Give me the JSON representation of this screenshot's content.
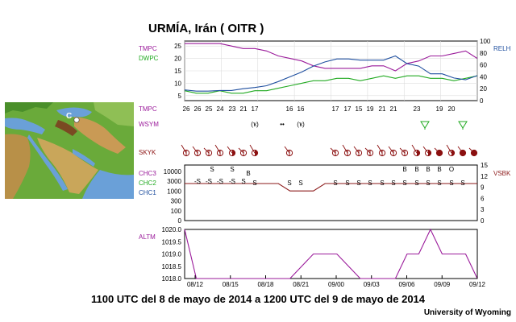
{
  "page": {
    "title": "URMÍA, Irán ( OITR )",
    "caption": "1100 UTC del 8 de mayo de 2014 a 1200 UTC del 9 de mayo de 2014",
    "credit": "University of Wyoming",
    "map_station_letter": "C"
  },
  "colors": {
    "tmpc": "#9a1a9a",
    "dwpc": "#22aa22",
    "relh": "#1f4f9f",
    "sky": "#8b1010",
    "ceiling": "#8b1a1a",
    "ceil_label": "#339999",
    "altm": "#9a1a9a",
    "weather": "#22aa22"
  },
  "chart_data": [
    {
      "type": "line",
      "panel": "temperature",
      "legend": [
        "TMPC",
        "DWPC",
        "RELH"
      ],
      "y_left_ticks": [
        "25",
        "20",
        "15",
        "10",
        "5"
      ],
      "y_right_ticks": [
        "100",
        "80",
        "60",
        "40",
        "20",
        "0"
      ],
      "ylim_left": [
        3,
        27
      ],
      "ylim_right": [
        0,
        100
      ],
      "grid": true,
      "x": [
        0,
        1,
        2,
        3,
        4,
        5,
        6,
        7,
        8,
        9,
        10,
        11,
        12,
        13,
        14,
        15,
        16,
        17,
        18,
        19,
        20,
        21,
        22,
        23,
        24,
        25
      ],
      "series": [
        {
          "name": "TMPC",
          "axis": "left",
          "values": [
            26,
            26,
            26,
            26,
            25,
            24,
            24,
            23,
            21,
            20,
            19,
            17,
            16,
            16,
            16,
            16,
            17,
            17,
            15,
            18,
            19,
            21,
            21,
            22,
            23,
            20
          ]
        },
        {
          "name": "DWPC",
          "axis": "left",
          "values": [
            7,
            6,
            6,
            7,
            6,
            6,
            7,
            7,
            8,
            9,
            10,
            11,
            11,
            12,
            12,
            11,
            12,
            13,
            12,
            13,
            13,
            12,
            12,
            11,
            12,
            13
          ]
        },
        {
          "name": "RELH",
          "axis": "right",
          "values": [
            18,
            16,
            16,
            17,
            17,
            20,
            22,
            25,
            32,
            40,
            48,
            58,
            65,
            70,
            70,
            68,
            68,
            68,
            75,
            62,
            58,
            45,
            45,
            38,
            35,
            42
          ]
        }
      ]
    },
    {
      "type": "table",
      "panel": "observations",
      "tmpc_label": "TMPC",
      "tmpc_values": [
        "26",
        "26",
        "25",
        "24",
        "23",
        "21",
        "17",
        "16",
        "16",
        "17",
        "17",
        "15",
        "19",
        "21",
        "21",
        "23",
        "19",
        "20"
      ],
      "wsym_label": "WSYM",
      "skyk_label": "SKYK"
    },
    {
      "type": "line",
      "panel": "ceiling",
      "legend": [
        "CHC3",
        "CHC2",
        "CHC1"
      ],
      "right_label": "VSBK",
      "y_left_ticks": [
        "10000",
        "3000",
        "1000",
        "300",
        "100",
        "0"
      ],
      "y_right_ticks": [
        "15",
        "12",
        "9",
        "6",
        "3",
        "0"
      ],
      "cloud_codes": [
        "-S",
        "-S",
        "-S",
        "-S",
        "S",
        "S",
        "S",
        "B",
        "B",
        "B",
        "B",
        "B",
        "O"
      ],
      "series": [
        {
          "name": "VSBK",
          "values": [
            10,
            10,
            10,
            10,
            10,
            10,
            10,
            10,
            10,
            8,
            8,
            8,
            10,
            10,
            10,
            10,
            10,
            10,
            10,
            10,
            10,
            10,
            10,
            10,
            10,
            10
          ]
        }
      ]
    },
    {
      "type": "line",
      "panel": "pressure",
      "legend": [
        "ALTM"
      ],
      "y_ticks": [
        "1020.0",
        "1019.5",
        "1019.0",
        "1018.5",
        "1018.0"
      ],
      "ylim": [
        1018.0,
        1020.0
      ],
      "x_ticks": [
        "08/12",
        "08/15",
        "08/18",
        "08/21",
        "09/00",
        "09/03",
        "09/06",
        "09/09",
        "09/12"
      ],
      "series": [
        {
          "name": "ALTM",
          "values": [
            1020,
            1018,
            1018,
            1018,
            1018,
            1018,
            1018,
            1018,
            1018,
            1018,
            1018.5,
            1019,
            1019,
            1019,
            1018.5,
            1018,
            1018,
            1018,
            1018,
            1019,
            1019,
            1020,
            1019,
            1019,
            1019,
            1018
          ]
        }
      ]
    }
  ]
}
